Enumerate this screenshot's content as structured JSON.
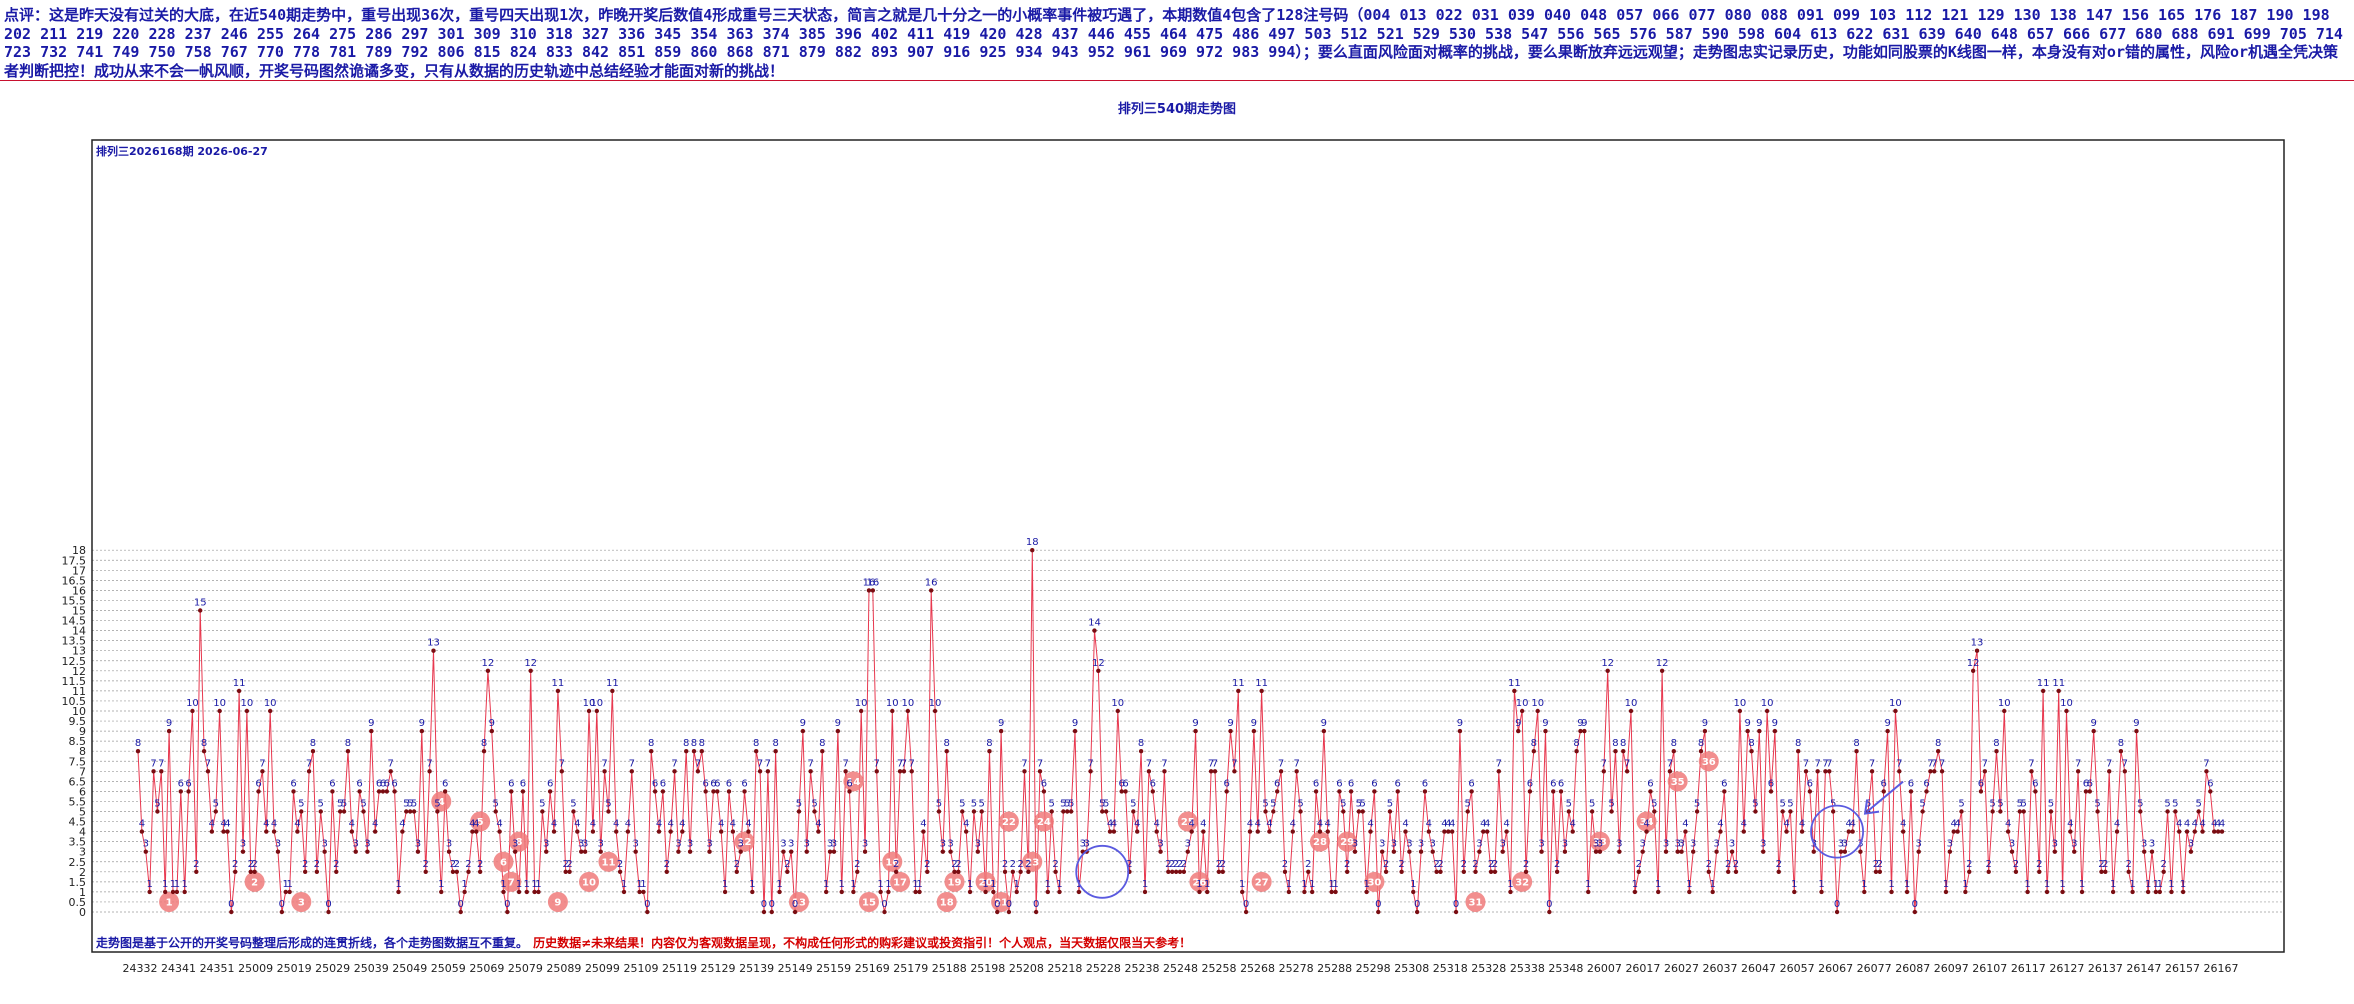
{
  "commentary": "点评：这是昨天没有过关的大底，在近540期走势中，重号出现36次，重号四天出现1次，昨晚开奖后数值4形成重号三天状态，简言之就是几十分之一的小概率事件被巧遇了，本期数值4包含了128注号码（004 013 022 031 039 040 048 057 066 077 080 088 091 099 103 112 121 129 130 138 147 156 165 176 187 190 198 202 211 219 220 228 237 246 255 264 275 286 297 301 309 310 318 327 336 345 354 363 374 385 396 402 411 419 420 428 437 446 455 464 475 486 497 503 512 521 529 530 538 547 556 565 576 587 590 598 604 613 622 631 639 640 648 657 666 677 680 688 691 699 705 714 723 732 741 749 750 758 767 770 778 781 789 792 806 815 824 833 842 851 859 860 868 871 879 882 893 907 916 925 934 943 952 961 969 972 983 994）；要么直面风险面对概率的挑战，要么果断放弃远远观望；走势图忠实记录历史，功能如同股票的K线图一样，本身没有对or错的属性，风险or机遇全凭决策者判断把控！成功从来不会一帆风顺，开奖号码图然诡谲多变，只有从数据的历史轨迹中总结经验才能面对新的挑战！",
  "chart_title": "排列三540期走势图",
  "period_label": "排列三2026168期 2026-06-27",
  "disclaimer_blue": "走势图是基于公开的开奖号码整理后形成的连贯折线，各个走势图数据互不重复。",
  "disclaimer_red": "历史数据≠未来结果！内容仅为客观数据呈现，不构成任何形式的购彩建议或投资指引！个人观点，当天数据仅限当天参考！",
  "colors": {
    "line": "#e8384f",
    "point": "#7a0d12",
    "point_label": "#1a1aa6",
    "grid": "#9a9a9a",
    "marker_fill": "#f07a7a",
    "circle": "#5a5ae0"
  },
  "chart_data": {
    "type": "line",
    "title": "排列三540期走势图",
    "xlabel": "",
    "ylabel": "",
    "ylim": [
      0,
      18.5
    ],
    "y_ticks": [
      "0",
      "0.5",
      "1",
      "1.5",
      "2",
      "2.5",
      "3",
      "3.5",
      "4",
      "4.5",
      "5",
      "5.5",
      "6",
      "6.5",
      "7",
      "7.5",
      "8",
      "8.5",
      "9",
      "9.5",
      "10",
      "10.5",
      "11",
      "11.5",
      "12",
      "12.5",
      "13",
      "13.5",
      "14",
      "14.5",
      "15",
      "15.5",
      "16",
      "16.5",
      "17",
      "17.5",
      "18"
    ],
    "x_tick_labels": [
      "24332",
      "24341",
      "24351",
      "25009",
      "25019",
      "25029",
      "25039",
      "25049",
      "25059",
      "25069",
      "25079",
      "25089",
      "25099",
      "25109",
      "25119",
      "25129",
      "25139",
      "25149",
      "25159",
      "25169",
      "25179",
      "25188",
      "25198",
      "25208",
      "25218",
      "25228",
      "25238",
      "25248",
      "25258",
      "25268",
      "25278",
      "25288",
      "25298",
      "25308",
      "25318",
      "25328",
      "25338",
      "25348",
      "26007",
      "26017",
      "26027",
      "26037",
      "26047",
      "26057",
      "26067",
      "26077",
      "26087",
      "26097",
      "26107",
      "26117",
      "26127",
      "26137",
      "26147",
      "26157",
      "26167"
    ],
    "grid": true,
    "series": [
      {
        "values": [
          8,
          4,
          3,
          1,
          7,
          5,
          7,
          1,
          9,
          1,
          1,
          6,
          1,
          6,
          10,
          2,
          15,
          8,
          7,
          4,
          5,
          10,
          4,
          4,
          0,
          2,
          11,
          3,
          10,
          2,
          2,
          6,
          7,
          4,
          10,
          4,
          3,
          0,
          1,
          1,
          6,
          4,
          5,
          2,
          7,
          8,
          2,
          5,
          3,
          0,
          6,
          2,
          5,
          5,
          8,
          4,
          3,
          6,
          5,
          3,
          9,
          4,
          6,
          6,
          6,
          7,
          6,
          1,
          4,
          5,
          5,
          5,
          3,
          9,
          2,
          7,
          13,
          5,
          1,
          6,
          3,
          2,
          2,
          0,
          1,
          2,
          4,
          4,
          2,
          8,
          12,
          9,
          5,
          4,
          1,
          0,
          6,
          3,
          1,
          6,
          1,
          12,
          1,
          1,
          5,
          3,
          6,
          4,
          11,
          7,
          2,
          2,
          5,
          4,
          3,
          3,
          10,
          4,
          10,
          3,
          7,
          5,
          11,
          4,
          2,
          1,
          4,
          7,
          3,
          1,
          1,
          0,
          8,
          6,
          4,
          6,
          2,
          4,
          7,
          3,
          4,
          8,
          3,
          8,
          7,
          8,
          6,
          3,
          6,
          6,
          4,
          1,
          6,
          4,
          2,
          3,
          6,
          4,
          1,
          8,
          7,
          0,
          7,
          0,
          8,
          1,
          3,
          2,
          3,
          0,
          5,
          9,
          3,
          7,
          5,
          4,
          8,
          1,
          3,
          3,
          9,
          1,
          7,
          6,
          1,
          2,
          10,
          3,
          16,
          16,
          7,
          1,
          0,
          1,
          10,
          2,
          7,
          7,
          10,
          7,
          1,
          1,
          4,
          2,
          16,
          10,
          5,
          3,
          8,
          3,
          2,
          2,
          5,
          4,
          1,
          5,
          3,
          5,
          1,
          8,
          1,
          0,
          9,
          2,
          0,
          2,
          1,
          2,
          7,
          2,
          18,
          0,
          7,
          6,
          1,
          5,
          2,
          1,
          5,
          5,
          5,
          9,
          1,
          3,
          3,
          7,
          14,
          12,
          5,
          5,
          4,
          4,
          10,
          6,
          6,
          2,
          5,
          4,
          8,
          1,
          7,
          6,
          4,
          3,
          7,
          2,
          2,
          2,
          2,
          2,
          3,
          4,
          9,
          1,
          4,
          1,
          7,
          7,
          2,
          2,
          6,
          9,
          7,
          11,
          1,
          0,
          4,
          9,
          4,
          11,
          5,
          4,
          5,
          6,
          7,
          2,
          1,
          4,
          7,
          5,
          1,
          2,
          1,
          6,
          4,
          9,
          4,
          1,
          1,
          6,
          5,
          2,
          6,
          3,
          5,
          5,
          1,
          4,
          6,
          0,
          3,
          2,
          5,
          3,
          6,
          2,
          4,
          3,
          1,
          0,
          3,
          6,
          4,
          3,
          2,
          2,
          4,
          4,
          4,
          0,
          9,
          2,
          5,
          6,
          2,
          3,
          4,
          4,
          2,
          2,
          7,
          3,
          4,
          1,
          11,
          9,
          10,
          2,
          6,
          8,
          10,
          3,
          9,
          0,
          6,
          2,
          6,
          3,
          5,
          4,
          8,
          9,
          9,
          1,
          5,
          3,
          3,
          7,
          12,
          5,
          8,
          3,
          8,
          7,
          10,
          1,
          2,
          3,
          4,
          6,
          5,
          1,
          12,
          3,
          7,
          8,
          3,
          3,
          4,
          1,
          3,
          5,
          8,
          9,
          2,
          1,
          3,
          4,
          6,
          2,
          3,
          2,
          10,
          4,
          9,
          8,
          5,
          9,
          3,
          10,
          6,
          9,
          2,
          5,
          4,
          5,
          1,
          8,
          4,
          7,
          6,
          3,
          7,
          1,
          7,
          7,
          5,
          0,
          3,
          3,
          4,
          4,
          8,
          3,
          1,
          5,
          7,
          2,
          2,
          6,
          9,
          1,
          10,
          7,
          4,
          1,
          6,
          0,
          3,
          5,
          6,
          7,
          7,
          8,
          7,
          1,
          3,
          4,
          4,
          5,
          1,
          2,
          12,
          13,
          6,
          7,
          2,
          5,
          8,
          5,
          10,
          4,
          3,
          2,
          5,
          5,
          1,
          7,
          6,
          2,
          11,
          1,
          5,
          3,
          11,
          1,
          10,
          4,
          3,
          7,
          1,
          6,
          6,
          9,
          5,
          2,
          2,
          7,
          1,
          4,
          8,
          7,
          2,
          1,
          9,
          5,
          3,
          1,
          3,
          1,
          1,
          2,
          5,
          1,
          5,
          4,
          1,
          4,
          3,
          4,
          5,
          4,
          7,
          6,
          4,
          4,
          4
        ]
      }
    ],
    "point_labels": [
      8,
      4,
      3,
      1,
      7,
      5,
      7,
      1,
      9,
      1,
      1,
      6,
      1,
      6,
      10,
      2,
      15,
      8,
      7,
      4,
      5,
      10,
      4,
      4,
      0,
      2,
      11,
      3,
      10,
      2,
      2,
      6,
      7,
      4,
      10,
      4,
      3,
      0,
      1,
      1,
      6,
      4,
      5,
      2,
      7,
      8,
      2,
      5,
      3,
      0,
      6,
      2,
      5,
      5,
      8,
      4,
      3,
      6,
      5,
      3,
      9,
      4,
      6,
      6,
      6,
      7,
      6,
      1,
      4,
      5,
      5,
      5,
      3,
      9,
      2,
      7,
      13,
      5,
      1,
      6,
      3,
      2,
      2,
      0,
      1,
      2,
      4,
      4,
      2,
      8,
      12,
      9,
      5,
      4,
      1,
      0,
      6,
      3,
      1,
      6,
      1,
      12,
      1,
      1,
      5,
      3,
      6,
      4,
      11,
      7,
      2,
      2,
      5,
      4,
      3,
      3,
      10,
      4,
      10,
      3,
      7,
      5,
      11,
      4,
      2,
      1,
      4,
      7,
      3,
      1,
      1,
      0,
      8,
      6,
      4,
      6,
      2,
      4,
      7,
      3,
      4,
      8,
      3,
      8,
      7,
      8,
      6,
      3,
      6,
      6,
      4,
      1,
      6,
      4,
      2,
      3,
      6,
      4,
      1,
      8,
      7,
      0,
      7,
      0,
      8,
      1,
      3,
      2,
      3,
      0,
      5,
      9,
      3,
      7,
      5,
      4,
      8,
      1,
      3,
      3,
      9,
      1,
      7,
      6,
      1,
      2,
      10,
      3,
      16,
      16,
      7,
      1,
      0,
      1,
      10,
      2,
      7,
      7,
      10,
      7,
      1,
      1,
      4,
      2,
      16,
      10,
      5,
      3,
      8,
      3,
      2,
      2,
      5,
      4,
      1,
      5,
      3,
      5,
      1,
      8,
      1,
      0,
      9,
      2,
      0,
      2,
      1,
      2,
      7,
      2,
      18,
      0,
      7,
      6,
      1,
      5,
      2,
      1,
      5,
      5,
      5,
      9,
      1,
      3,
      3,
      7,
      14,
      12,
      5,
      5,
      4,
      4,
      10,
      6,
      6,
      2,
      5,
      4,
      8,
      1,
      7,
      6,
      4,
      3,
      7,
      2,
      2,
      2,
      2,
      2,
      3,
      4,
      9,
      1,
      4,
      1,
      7,
      7,
      2,
      2,
      6,
      9,
      7,
      11,
      1,
      0,
      4,
      9,
      4,
      11,
      5,
      4,
      5,
      6,
      7,
      2,
      1,
      4,
      7,
      5,
      1,
      2,
      1,
      6,
      4,
      9,
      4,
      1,
      1,
      6,
      5,
      2,
      6,
      3,
      5,
      5,
      1,
      4,
      6,
      0,
      3,
      2,
      5,
      3,
      6,
      2,
      4,
      3,
      1,
      0,
      3,
      6,
      4,
      3,
      2,
      2,
      4,
      4,
      4,
      0,
      9,
      2,
      5,
      6,
      2,
      3,
      4,
      4,
      2,
      2,
      7,
      3,
      4,
      1,
      11,
      9,
      10,
      2,
      6,
      8,
      10,
      3,
      9,
      0,
      6,
      2,
      6,
      3,
      5,
      4,
      8,
      9,
      9,
      1,
      5,
      3,
      3,
      7,
      12,
      5,
      8,
      3,
      8,
      7,
      10,
      1,
      2,
      3,
      4,
      6,
      5,
      1,
      12,
      3,
      7,
      8,
      3,
      3,
      4,
      1,
      3,
      5,
      8,
      9,
      2,
      1,
      3,
      4,
      6,
      2,
      3,
      2,
      10,
      4,
      9,
      8,
      5,
      9,
      3,
      10,
      6,
      9,
      2,
      5,
      4,
      5,
      1,
      8,
      4,
      7,
      6,
      3,
      7,
      1,
      7,
      7,
      5,
      0,
      3,
      3,
      4,
      4,
      8,
      3,
      1,
      5,
      7,
      2,
      2,
      6,
      9,
      1,
      10,
      7,
      4,
      1,
      6,
      0,
      3,
      5,
      6,
      7,
      7,
      8,
      7,
      1,
      3,
      4,
      4,
      5,
      1,
      2,
      12,
      13,
      6,
      7,
      2,
      5,
      8,
      5,
      10,
      4,
      3,
      2,
      5,
      5,
      1,
      7,
      6,
      2,
      11,
      1,
      5,
      3,
      11,
      1,
      10,
      4,
      3,
      7,
      1,
      6,
      6,
      9,
      5,
      2,
      2,
      7,
      1,
      4,
      8,
      7,
      2,
      1,
      9,
      5,
      3,
      1,
      3,
      1,
      1,
      2,
      5,
      1,
      5,
      4,
      1,
      4,
      3,
      4,
      5,
      4,
      7,
      6,
      4,
      4,
      4
    ],
    "repeat_markers": [
      {
        "label": "1",
        "x_index": 8,
        "y": 0.5
      },
      {
        "label": "2",
        "x_index": 30,
        "y": 1.5
      },
      {
        "label": "3",
        "x_index": 42,
        "y": 0.5
      },
      {
        "label": "4",
        "x_index": 78,
        "y": 5.5
      },
      {
        "label": "5",
        "x_index": 88,
        "y": 4.5
      },
      {
        "label": "6",
        "x_index": 94,
        "y": 2.5
      },
      {
        "label": "7",
        "x_index": 96,
        "y": 1.5
      },
      {
        "label": "8",
        "x_index": 98,
        "y": 3.5
      },
      {
        "label": "9",
        "x_index": 108,
        "y": 0.5
      },
      {
        "label": "10",
        "x_index": 116,
        "y": 1.5
      },
      {
        "label": "11",
        "x_index": 121,
        "y": 2.5
      },
      {
        "label": "12",
        "x_index": 156,
        "y": 3.5
      },
      {
        "label": "13",
        "x_index": 170,
        "y": 0.5
      },
      {
        "label": "14",
        "x_index": 184,
        "y": 6.5
      },
      {
        "label": "15",
        "x_index": 188,
        "y": 0.5
      },
      {
        "label": "16",
        "x_index": 194,
        "y": 2.5
      },
      {
        "label": "17",
        "x_index": 196,
        "y": 1.5
      },
      {
        "label": "18",
        "x_index": 208,
        "y": 0.5
      },
      {
        "label": "19",
        "x_index": 210,
        "y": 1.5
      },
      {
        "label": "20",
        "x_index": 218,
        "y": 1.5
      },
      {
        "label": "21",
        "x_index": 222,
        "y": 0.5
      },
      {
        "label": "22",
        "x_index": 224,
        "y": 4.5
      },
      {
        "label": "23",
        "x_index": 230,
        "y": 2.5
      },
      {
        "label": "24",
        "x_index": 233,
        "y": 4.5
      },
      {
        "label": "25",
        "x_index": 270,
        "y": 4.5
      },
      {
        "label": "26",
        "x_index": 273,
        "y": 1.5
      },
      {
        "label": "27",
        "x_index": 289,
        "y": 1.5
      },
      {
        "label": "28",
        "x_index": 304,
        "y": 3.5
      },
      {
        "label": "29",
        "x_index": 311,
        "y": 3.5
      },
      {
        "label": "30",
        "x_index": 318,
        "y": 1.5
      },
      {
        "label": "31",
        "x_index": 344,
        "y": 0.5
      },
      {
        "label": "32",
        "x_index": 356,
        "y": 1.5
      },
      {
        "label": "33",
        "x_index": 376,
        "y": 3.5
      },
      {
        "label": "34",
        "x_index": 388,
        "y": 4.5
      },
      {
        "label": "35",
        "x_index": 396,
        "y": 6.5
      },
      {
        "label": "36",
        "x_index": 404,
        "y": 7.5
      }
    ],
    "highlight_circles": [
      {
        "x_index": 248,
        "y": 2
      },
      {
        "x_index": 437,
        "y": 4
      }
    ]
  }
}
